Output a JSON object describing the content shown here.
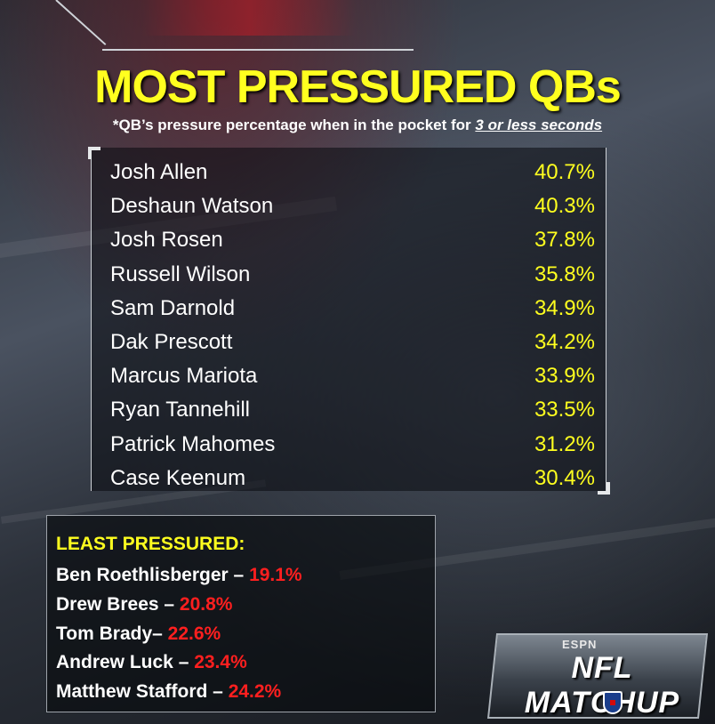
{
  "chart_data": {
    "type": "table",
    "title": "MOST PRESSURED QBs",
    "subtitle_prefix": "*QB’s pressure percentage when in the pocket for ",
    "subtitle_emphasis": "3 or less seconds",
    "rows": [
      {
        "name": "Josh Allen",
        "value": "40.7%"
      },
      {
        "name": "Deshaun Watson",
        "value": "40.3%"
      },
      {
        "name": "Josh Rosen",
        "value": "37.8%"
      },
      {
        "name": "Russell Wilson",
        "value": "35.8%"
      },
      {
        "name": "Sam Darnold",
        "value": "34.9%"
      },
      {
        "name": "Dak Prescott",
        "value": "34.2%"
      },
      {
        "name": "Marcus Mariota",
        "value": "33.9%"
      },
      {
        "name": "Ryan Tannehill",
        "value": "33.5%"
      },
      {
        "name": "Patrick Mahomes",
        "value": "31.2%"
      },
      {
        "name": "Case Keenum",
        "value": "30.4%"
      }
    ],
    "least_title": "LEAST PRESSURED:",
    "least_rows": [
      {
        "name": "Ben Roethlisberger – ",
        "value": "19.1%"
      },
      {
        "name": "Drew Brees – ",
        "value": "20.8%"
      },
      {
        "name": "Tom Brady– ",
        "value": "22.6%"
      },
      {
        "name": "Andrew Luck – ",
        "value": "23.4%"
      },
      {
        "name": "Matthew Stafford – ",
        "value": "24.2%"
      }
    ]
  },
  "logo": {
    "network": "ESPN",
    "show": "NFL MATCHUP"
  },
  "colors": {
    "accent": "#ffff1f",
    "highlight": "#ff1f1f",
    "text": "#ffffff"
  }
}
